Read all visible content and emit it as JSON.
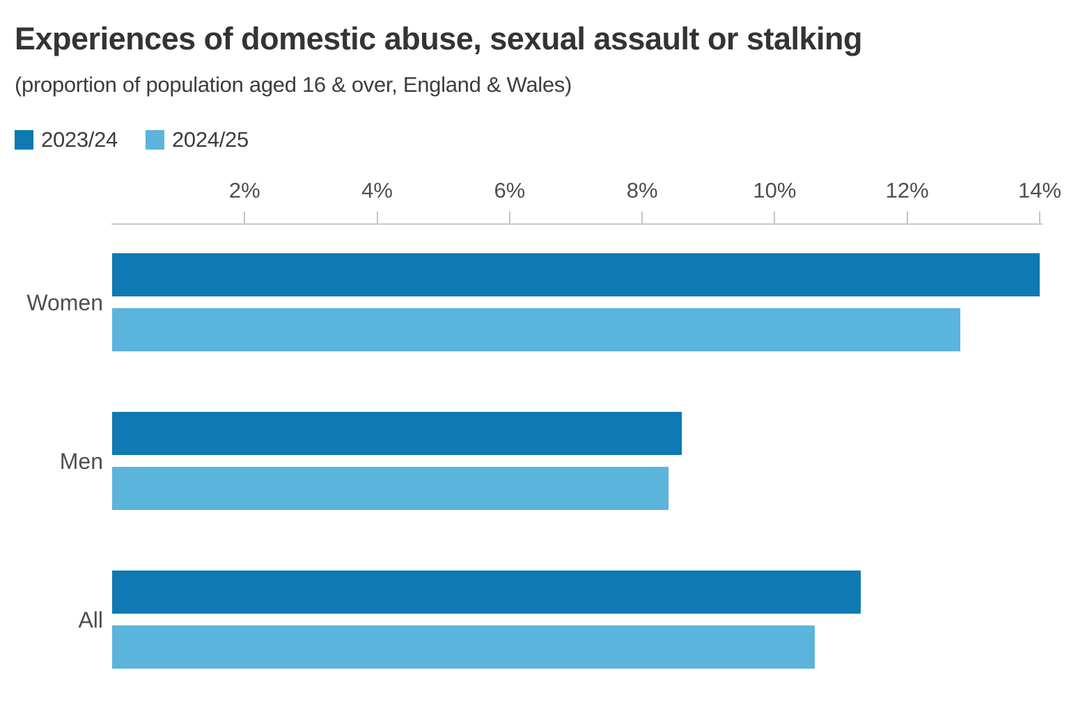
{
  "chart_data": {
    "type": "bar",
    "orientation": "horizontal",
    "title": "Experiences of domestic abuse, sexual assault or stalking",
    "subtitle": "(proportion of population aged 16 & over, England & Wales)",
    "categories": [
      "Women",
      "Men",
      "All"
    ],
    "series": [
      {
        "name": "2023/24",
        "color": "#0e79b2",
        "values": [
          14.0,
          8.6,
          11.3
        ]
      },
      {
        "name": "2024/25",
        "color": "#5bb4dc",
        "values": [
          12.8,
          8.4,
          10.6
        ]
      }
    ],
    "x_ticks": [
      "2%",
      "4%",
      "6%",
      "8%",
      "10%",
      "12%",
      "14%"
    ],
    "x_tick_values": [
      2,
      4,
      6,
      8,
      10,
      12,
      14
    ],
    "xlim": [
      0,
      14
    ],
    "unit": "%",
    "grid": false,
    "legend_position": "top-left"
  },
  "colors": {
    "series_dark_blue": "#0e79b2",
    "series_light_blue": "#5bb4dc",
    "axis_line": "#c9c9c9",
    "tick_text": "#4f4f4f",
    "title_text": "#343434",
    "background": "#ffffff"
  }
}
